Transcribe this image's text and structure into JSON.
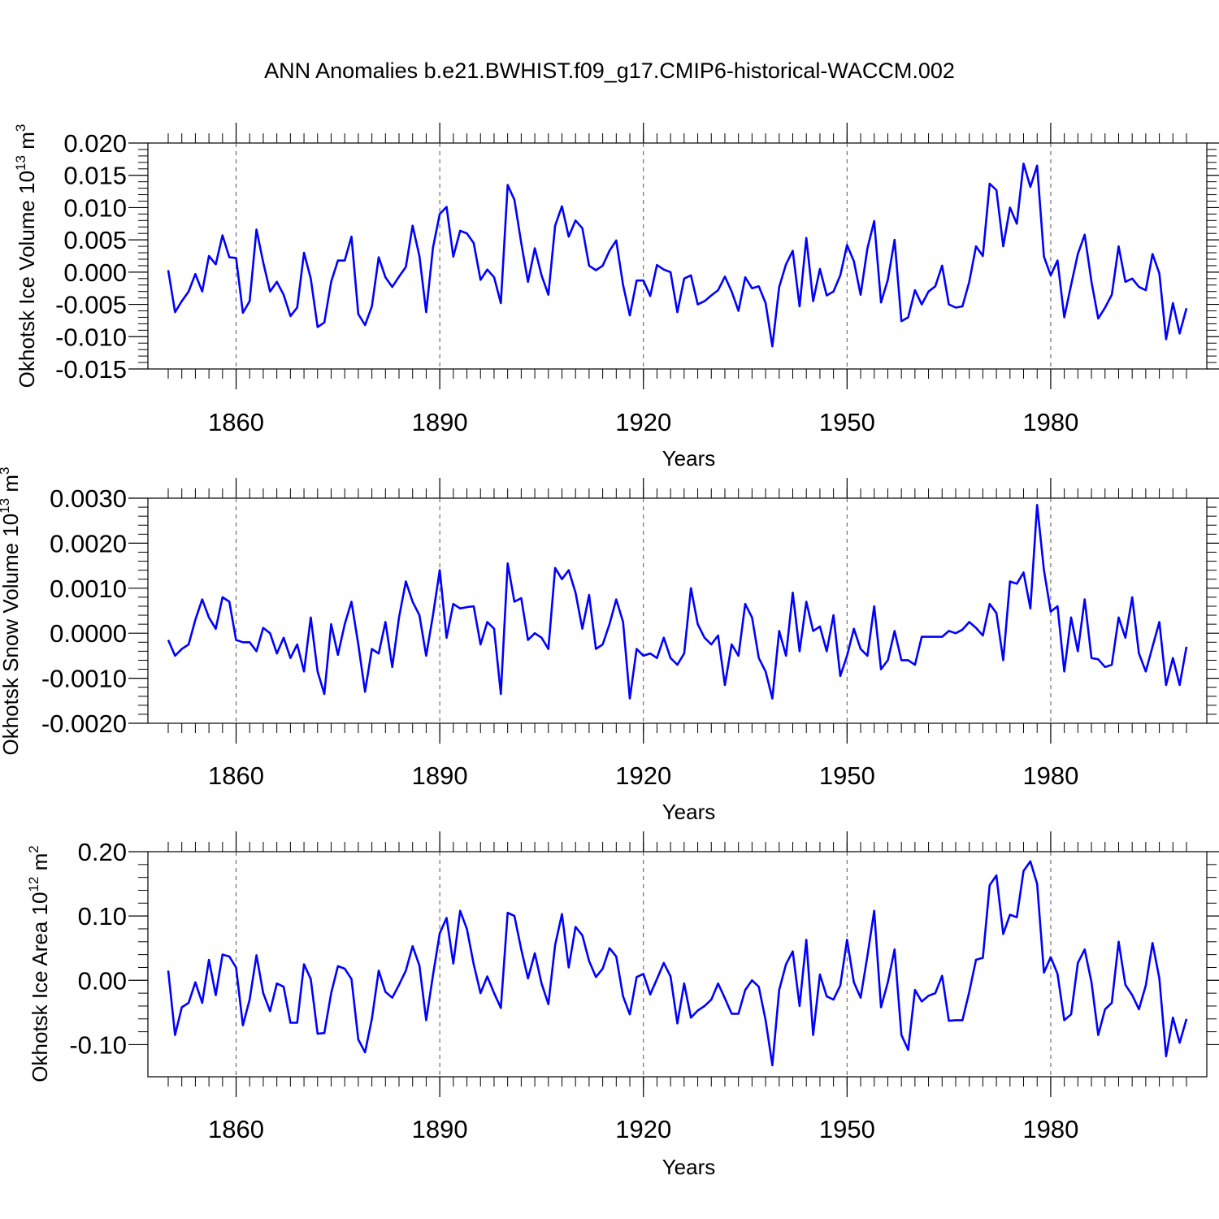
{
  "title": "ANN Anomalies b.e21.BWHIST.f09_g17.CMIP6-historical-WACCM.002",
  "line_color": "#0000ff",
  "chart_data": [
    {
      "type": "line",
      "title": "ANN Anomalies b.e21.BWHIST.f09_g17.CMIP6-historical-WACCM.002",
      "xlabel": "Years",
      "ylabel": "Okhotsk Ice Volume 10",
      "ylabel_exp": "13",
      "ylabel_unit": " m",
      "ylabel_unit_exp": "3",
      "xlim": [
        1850,
        2000
      ],
      "ylim": [
        -0.015,
        0.02
      ],
      "xticks": [
        "1860",
        "1890",
        "1920",
        "1950",
        "1980"
      ],
      "xtick_values": [
        1860,
        1890,
        1920,
        1950,
        1980
      ],
      "yticks": [
        "0.020",
        "0.015",
        "0.010",
        "0.005",
        "0.000",
        "-0.005",
        "-0.010",
        "-0.015"
      ],
      "ytick_values": [
        0.02,
        0.015,
        0.01,
        0.005,
        0.0,
        -0.005,
        -0.01,
        -0.015
      ],
      "x_start": 1850,
      "series": [
        {
          "name": "Okhotsk Ice Volume",
          "values": [
            0.0003,
            -0.0062,
            -0.0045,
            -0.003,
            -0.0003,
            -0.003,
            0.0025,
            0.0012,
            0.0057,
            0.0023,
            0.0022,
            -0.0063,
            -0.0045,
            0.0066,
            0.0015,
            -0.003,
            -0.0015,
            -0.0035,
            -0.0068,
            -0.0055,
            0.003,
            -0.001,
            -0.0085,
            -0.0078,
            -0.0015,
            0.0018,
            0.0018,
            0.0055,
            -0.0065,
            -0.0082,
            -0.0053,
            0.0023,
            -0.0008,
            -0.0023,
            -0.0007,
            0.0008,
            0.0072,
            0.0025,
            -0.0062,
            0.0038,
            0.009,
            0.0101,
            0.0024,
            0.0064,
            0.006,
            0.0045,
            -0.0012,
            0.0004,
            -0.0008,
            -0.0048,
            0.0135,
            0.0112,
            0.0045,
            -0.0015,
            0.0037,
            -0.0005,
            -0.0035,
            0.0072,
            0.0102,
            0.0055,
            0.008,
            0.0068,
            0.001,
            0.0003,
            0.001,
            0.0033,
            0.0049,
            -0.002,
            -0.0067,
            -0.0013,
            -0.0013,
            -0.0037,
            0.0011,
            0.0004,
            0.0,
            -0.0062,
            -0.001,
            -0.0005,
            -0.005,
            -0.0045,
            -0.0036,
            -0.0028,
            -0.0007,
            -0.003,
            -0.006,
            -0.0008,
            -0.0025,
            -0.0022,
            -0.0048,
            -0.0115,
            -0.0023,
            0.0012,
            0.0033,
            -0.0053,
            0.0053,
            -0.0045,
            0.0005,
            -0.0036,
            -0.003,
            -0.0005,
            0.0042,
            0.0017,
            -0.0035,
            0.0037,
            0.0079,
            -0.0047,
            -0.0012,
            0.005,
            -0.0076,
            -0.007,
            -0.0028,
            -0.005,
            -0.003,
            -0.0022,
            0.001,
            -0.005,
            -0.0055,
            -0.0053,
            -0.0015,
            0.004,
            0.0025,
            0.0137,
            0.0127,
            0.004,
            0.01,
            0.0075,
            0.0168,
            0.0132,
            0.0165,
            0.0024,
            -0.0005,
            0.0018,
            -0.007,
            -0.002,
            0.0028,
            0.0058,
            -0.0015,
            -0.0072,
            -0.0055,
            -0.0035,
            0.004,
            -0.0015,
            -0.001,
            -0.0023,
            -0.0028,
            0.0028,
            -0.0002,
            -0.0104,
            -0.0048,
            -0.0095,
            -0.0056
          ]
        }
      ]
    },
    {
      "type": "line",
      "xlabel": "Years",
      "ylabel": "Okhotsk Snow Volume 10",
      "ylabel_exp": "13",
      "ylabel_unit": " m",
      "ylabel_unit_exp": "3",
      "xlim": [
        1850,
        2000
      ],
      "ylim": [
        -0.002,
        0.003
      ],
      "xticks": [
        "1860",
        "1890",
        "1920",
        "1950",
        "1980"
      ],
      "xtick_values": [
        1860,
        1890,
        1920,
        1950,
        1980
      ],
      "yticks": [
        "0.0030",
        "0.0020",
        "0.0010",
        "0.0000",
        "-0.0010",
        "-0.0020"
      ],
      "ytick_values": [
        0.003,
        0.002,
        0.001,
        0.0,
        -0.001,
        -0.002
      ],
      "x_start": 1850,
      "series": [
        {
          "name": "Okhotsk Snow Volume",
          "values": [
            -0.00015,
            -0.0005,
            -0.00035,
            -0.00025,
            0.0003,
            0.00075,
            0.00035,
            0.0001,
            0.0008,
            0.0007,
            -0.00015,
            -0.0002,
            -0.0002,
            -0.0004,
            0.00012,
            0.0,
            -0.00045,
            -0.0001,
            -0.00055,
            -0.00025,
            -0.00085,
            0.00035,
            -0.00085,
            -0.00135,
            0.0002,
            -0.00048,
            0.0002,
            0.0007,
            -0.00025,
            -0.0013,
            -0.00035,
            -0.00045,
            0.00025,
            -0.00075,
            0.00035,
            0.00115,
            0.0007,
            0.0004,
            -0.0005,
            0.0004,
            0.0014,
            -0.0001,
            0.00065,
            0.00055,
            0.00058,
            0.0006,
            -0.00025,
            0.00025,
            0.0001,
            -0.00135,
            0.00155,
            0.0007,
            0.00078,
            -0.00015,
            0.0,
            -0.0001,
            -0.00035,
            0.00145,
            0.0012,
            0.0014,
            0.0009,
            0.0001,
            0.00085,
            -0.00035,
            -0.00025,
            0.0002,
            0.00075,
            0.00025,
            -0.00145,
            -0.00035,
            -0.0005,
            -0.00045,
            -0.00055,
            -0.0001,
            -0.00055,
            -0.0007,
            -0.00045,
            0.001,
            0.0002,
            -0.0001,
            -0.00025,
            -5e-05,
            -0.00115,
            -0.00025,
            -0.0005,
            0.00065,
            0.00035,
            -0.00055,
            -0.00085,
            -0.00145,
            5e-05,
            -0.0005,
            0.0009,
            -0.0004,
            0.0007,
            5e-05,
            0.00015,
            -0.0004,
            0.0004,
            -0.00095,
            -0.0005,
            0.0001,
            -0.00035,
            -0.0005,
            0.0006,
            -0.0008,
            -0.0006,
            5e-05,
            -0.0006,
            -0.0006,
            -0.0007,
            -8e-05,
            -8e-05,
            -8e-05,
            -8e-05,
            5e-05,
            0.0,
            8e-05,
            0.00025,
            0.00012,
            -5e-05,
            0.00065,
            0.00045,
            -0.0006,
            0.00115,
            0.0011,
            0.00135,
            0.00055,
            0.00285,
            0.0014,
            0.00048,
            0.0006,
            -0.00085,
            0.00035,
            -0.0004,
            0.00075,
            -0.00055,
            -0.00058,
            -0.00075,
            -0.0007,
            0.00035,
            -0.0001,
            0.0008,
            -0.00045,
            -0.00085,
            -0.0003,
            0.00025,
            -0.00115,
            -0.00055,
            -0.00115,
            -0.0003
          ]
        }
      ]
    },
    {
      "type": "line",
      "xlabel": "Years",
      "ylabel": "Okhotsk Ice Area 10",
      "ylabel_exp": "12",
      "ylabel_unit": " m",
      "ylabel_unit_exp": "2",
      "xlim": [
        1850,
        2000
      ],
      "ylim": [
        -0.15,
        0.2
      ],
      "xticks": [
        "1860",
        "1890",
        "1920",
        "1950",
        "1980"
      ],
      "xtick_values": [
        1860,
        1890,
        1920,
        1950,
        1980
      ],
      "yticks": [
        "0.20",
        "0.10",
        "0.00",
        "-0.10"
      ],
      "ytick_values": [
        0.2,
        0.1,
        0.0,
        -0.1
      ],
      "x_start": 1850,
      "series": [
        {
          "name": "Okhotsk Ice Area",
          "values": [
            0.015,
            -0.085,
            -0.042,
            -0.035,
            -0.003,
            -0.035,
            0.032,
            -0.023,
            0.04,
            0.037,
            0.02,
            -0.07,
            -0.03,
            0.039,
            -0.02,
            -0.048,
            -0.005,
            -0.01,
            -0.066,
            -0.066,
            0.025,
            0.002,
            -0.083,
            -0.082,
            -0.02,
            0.022,
            0.018,
            0.002,
            -0.092,
            -0.112,
            -0.06,
            0.015,
            -0.018,
            -0.027,
            -0.007,
            0.015,
            0.053,
            0.023,
            -0.062,
            0.008,
            0.073,
            0.097,
            0.026,
            0.108,
            0.08,
            0.025,
            -0.02,
            0.006,
            -0.02,
            -0.043,
            0.105,
            0.1,
            0.048,
            0.003,
            0.042,
            -0.005,
            -0.037,
            0.055,
            0.103,
            0.02,
            0.083,
            0.07,
            0.03,
            0.005,
            0.018,
            0.05,
            0.037,
            -0.025,
            -0.053,
            0.005,
            0.01,
            -0.022,
            0.002,
            0.027,
            0.006,
            -0.067,
            -0.005,
            -0.058,
            -0.047,
            -0.04,
            -0.03,
            -0.005,
            -0.028,
            -0.052,
            -0.052,
            -0.015,
            0.0,
            -0.01,
            -0.062,
            -0.132,
            -0.015,
            0.025,
            0.045,
            -0.04,
            0.063,
            -0.085,
            0.009,
            -0.025,
            -0.03,
            -0.008,
            0.063,
            -0.003,
            -0.027,
            0.038,
            0.108,
            -0.042,
            -0.003,
            0.048,
            -0.085,
            -0.108,
            -0.015,
            -0.033,
            -0.024,
            -0.02,
            0.007,
            -0.063,
            -0.062,
            -0.062,
            -0.018,
            0.032,
            0.035,
            0.148,
            0.163,
            0.072,
            0.102,
            0.098,
            0.17,
            0.185,
            0.15,
            0.012,
            0.036,
            0.01,
            -0.062,
            -0.053,
            0.027,
            0.048,
            -0.003,
            -0.085,
            -0.045,
            -0.035,
            0.06,
            -0.007,
            -0.023,
            -0.045,
            -0.008,
            0.058,
            0.003,
            -0.118,
            -0.058,
            -0.097,
            -0.06
          ]
        }
      ]
    }
  ]
}
